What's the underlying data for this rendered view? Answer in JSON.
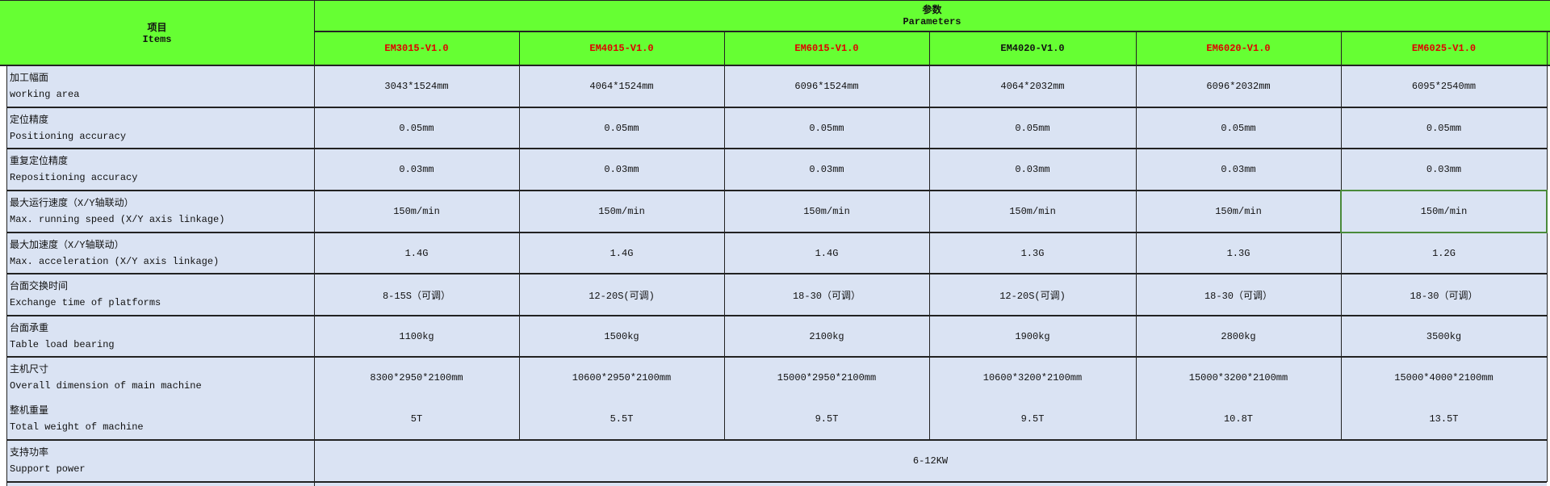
{
  "header": {
    "items_cn": "项目",
    "items_en": "Items",
    "params_cn": "参数",
    "params_en": "Parameters",
    "models": [
      {
        "name": "EM3015-V1.0",
        "color": "#e00000"
      },
      {
        "name": "EM4015-V1.0",
        "color": "#e00000"
      },
      {
        "name": "EM6015-V1.0",
        "color": "#e00000"
      },
      {
        "name": "EM4020-V1.0",
        "color": "#111111"
      },
      {
        "name": "EM6020-V1.0",
        "color": "#e00000"
      },
      {
        "name": "EM6025-V1.0",
        "color": "#e00000"
      }
    ]
  },
  "rows": [
    {
      "cn": "加工幅面",
      "en": "working area",
      "values": [
        "3043*1524mm",
        "4064*1524mm",
        "6096*1524mm",
        "4064*2032mm",
        "6096*2032mm",
        "6095*2540mm"
      ]
    },
    {
      "cn": "定位精度",
      "en": "Positioning accuracy",
      "values": [
        "0.05mm",
        "0.05mm",
        "0.05mm",
        "0.05mm",
        "0.05mm",
        "0.05mm"
      ]
    },
    {
      "cn": "重复定位精度",
      "en": "Repositioning accuracy",
      "values": [
        "0.03mm",
        "0.03mm",
        "0.03mm",
        "0.03mm",
        "0.03mm",
        "0.03mm"
      ]
    },
    {
      "cn": "最大运行速度（X/Y轴联动）",
      "en": "Max. running speed (X/Y axis linkage)",
      "values": [
        "150m/min",
        "150m/min",
        "150m/min",
        "150m/min",
        "150m/min",
        "150m/min"
      ]
    },
    {
      "cn": "最大加速度（X/Y轴联动）",
      "en": "Max. acceleration (X/Y axis linkage)",
      "values": [
        "1.4G",
        "1.4G",
        "1.4G",
        "1.3G",
        "1.3G",
        "1.2G"
      ]
    },
    {
      "cn": "台面交换时间",
      "en": "Exchange time of platforms",
      "values": [
        "8-15S（可调）",
        "12-20S(可调)",
        "18-30（可调）",
        "12-20S(可调)",
        "18-30（可调）",
        "18-30（可调）"
      ]
    },
    {
      "cn": "台面承重",
      "en": "Table load bearing",
      "values": [
        "1100kg",
        "1500kg",
        "2100kg",
        "1900kg",
        "2800kg",
        "3500kg"
      ]
    },
    {
      "cn": "主机尺寸",
      "en": "Overall dimension of main machine",
      "values": [
        "8300*2950*2100mm",
        "10600*2950*2100mm",
        "15000*2950*2100mm",
        "10600*3200*2100mm",
        "15000*3200*2100mm",
        "15000*4000*2100mm"
      ]
    },
    {
      "cn": "整机重量",
      "en": "Total weight of machine",
      "values": [
        "5T",
        "5.5T",
        "9.5T",
        "9.5T",
        "10.8T",
        "13.5T"
      ]
    }
  ],
  "power": {
    "cn": "支持功率",
    "en": "Support power",
    "value": "6-12KW"
  },
  "colors": {
    "header_bg": "#66ff33",
    "cell_bg": "#dae3f3",
    "selection": "#4a8a3a"
  }
}
